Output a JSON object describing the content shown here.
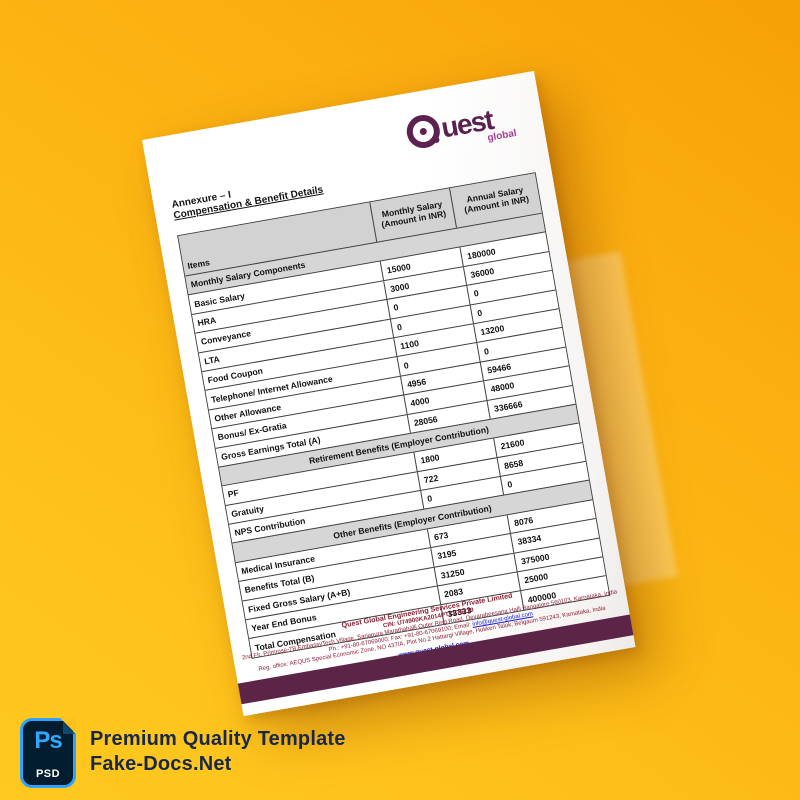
{
  "colors": {
    "background_amber": "#fdb914",
    "page_white": "#ffffff",
    "table_gray": "#d6d6d6",
    "band_purple": "#5c2547",
    "logo_purple": "#5b2150",
    "logo_magenta": "#a63f9b",
    "footer_maroon": "#8c1e32",
    "link_blue": "#1519d5",
    "ps_blue": "#31a8ff",
    "caption_navy": "#17284a"
  },
  "badge": {
    "ps_label": "Ps",
    "psd_label": "PSD"
  },
  "caption": {
    "line1": "Premium Quality Template",
    "line2": "Fake-Docs.Net"
  },
  "document": {
    "logo": {
      "brand": "Quest",
      "brand_rest": "uest",
      "tagline": "global"
    },
    "annexure_line1": "Annexure – I",
    "annexure_line2": "Compensation & Benefit Details",
    "table": {
      "columns": [
        {
          "label": "Items"
        },
        {
          "line1": "Monthly Salary",
          "line2": "(Amount in INR)"
        },
        {
          "line1": "Annual Salary",
          "line2": "(Amount in INR)"
        }
      ],
      "rows": [
        {
          "type": "section",
          "align": "left",
          "label": "Monthly Salary Components"
        },
        {
          "type": "data",
          "label": "Basic Salary",
          "monthly": "15000",
          "annual": "180000"
        },
        {
          "type": "data",
          "label": "HRA",
          "monthly": "3000",
          "annual": "36000"
        },
        {
          "type": "data",
          "label": "Conveyance",
          "monthly": "0",
          "annual": "0"
        },
        {
          "type": "data",
          "label": "LTA",
          "monthly": "0",
          "annual": "0"
        },
        {
          "type": "data",
          "label": "Food Coupon",
          "monthly": "1100",
          "annual": "13200"
        },
        {
          "type": "data",
          "label": "Telephone/ Internet Allowance",
          "monthly": "0",
          "annual": "0"
        },
        {
          "type": "data",
          "label": "Other Allowance",
          "monthly": "4956",
          "annual": "59466"
        },
        {
          "type": "data",
          "label": "Bonus/ Ex-Gratia",
          "monthly": "4000",
          "annual": "48000"
        },
        {
          "type": "data",
          "label": "Gross Earnings Total (A)",
          "monthly": "28056",
          "annual": "336666"
        },
        {
          "type": "section",
          "align": "center",
          "label": "Retirement Benefits (Employer Contribution)"
        },
        {
          "type": "data",
          "label": "PF",
          "monthly": "1800",
          "annual": "21600"
        },
        {
          "type": "data",
          "label": "Gratuity",
          "monthly": "722",
          "annual": "8658"
        },
        {
          "type": "data",
          "label": "NPS Contribution",
          "monthly": "0",
          "annual": "0"
        },
        {
          "type": "section",
          "align": "center",
          "label": "Other Benefits (Employer Contribution)"
        },
        {
          "type": "data",
          "label": "Medical Insurance",
          "monthly": "673",
          "annual": "8076"
        },
        {
          "type": "data",
          "label": "Benefits Total (B)",
          "monthly": "3195",
          "annual": "38334"
        },
        {
          "type": "data",
          "label": "Fixed Gross Salary (A+B)",
          "monthly": "31250",
          "annual": "375000"
        },
        {
          "type": "data",
          "label": "Year End Bonus",
          "monthly": "2083",
          "annual": "25000"
        },
        {
          "type": "data",
          "label": "Total Compensation",
          "monthly": "33333",
          "annual": "400000"
        }
      ]
    },
    "footer": {
      "company": "Quest Global Engineering Services Private Limited",
      "cin": "CIN: U74900KA2014PTC076219",
      "address": "2nd Flr, Primrose-7B,EmbassyTech Village, Sarjapura Marathahalli Outer Ring Road, Devarabeesana Halli Bangalore 560103, Karnataka, India",
      "phone_prefix": "Ph.: +91-80-67069000; Fax: +91-80-67069100; Email: ",
      "email": "info@quest-global.com",
      "reg_office": "Reg. office: AEQUS Special Economic Zone, NO 437/A, Plot No.2 Hattargi Village, Hukkeri Taluk, Belgaum 591243, Karnataka, India",
      "website": "www.quest-global.com"
    }
  }
}
